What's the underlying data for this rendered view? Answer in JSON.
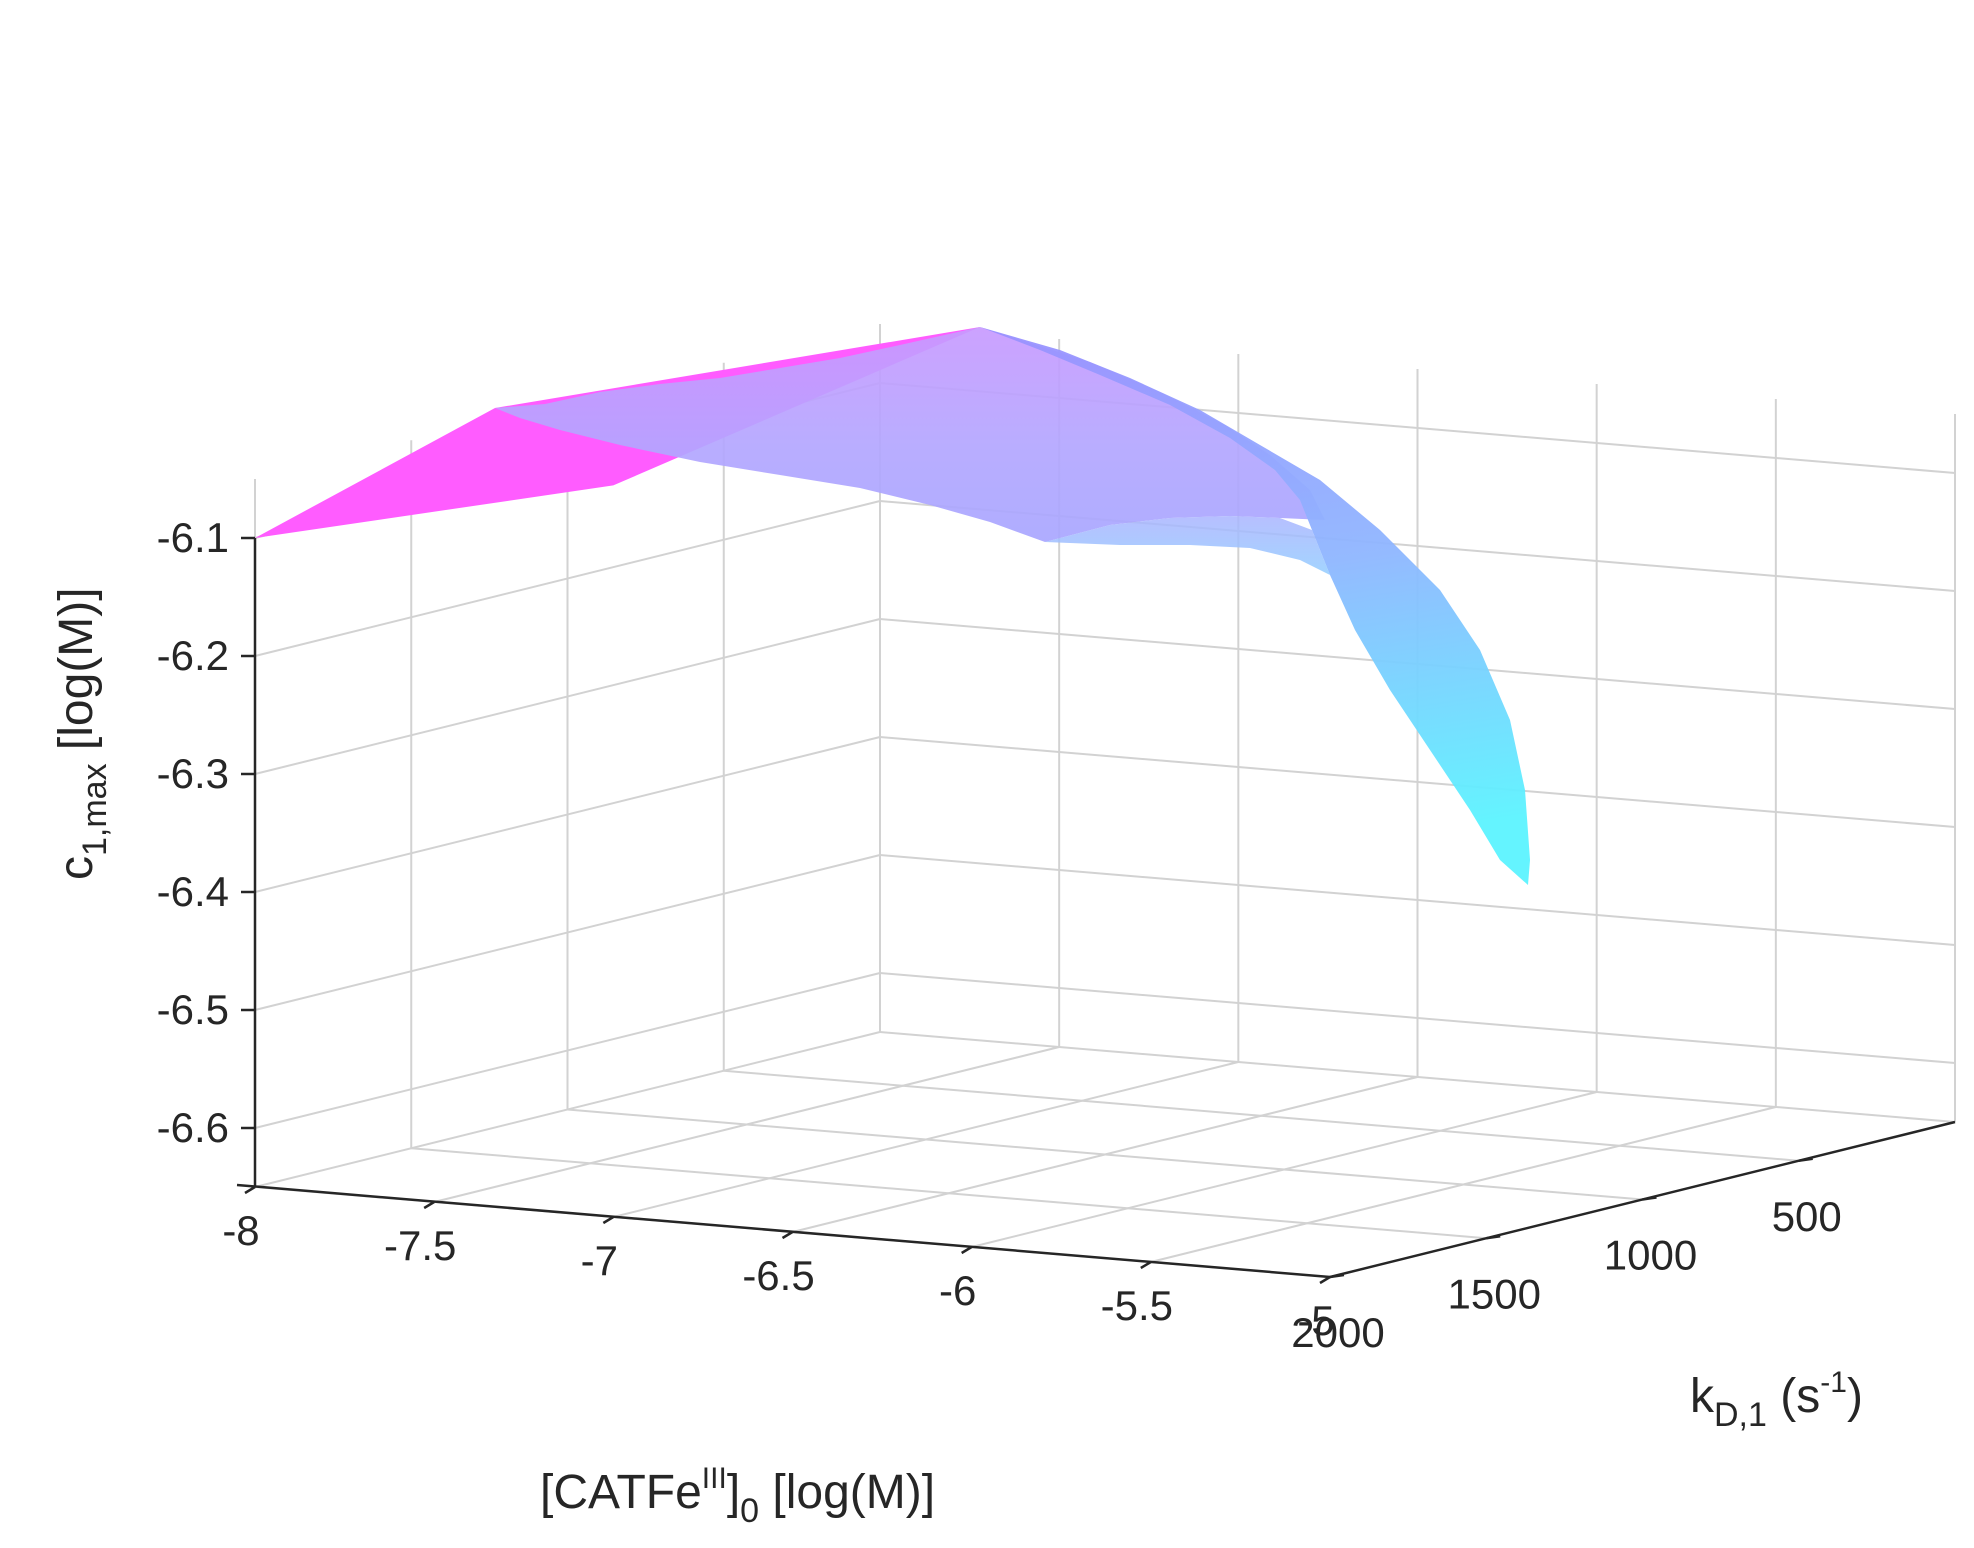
{
  "chart_data": {
    "type": "surface3d",
    "title": "",
    "x_axis": {
      "label_main": "[CATFe",
      "label_sup": "III",
      "label_close": "]",
      "label_sub": "0",
      "label_units": " [log(M)]",
      "range": [
        -8,
        -5
      ],
      "ticks": [
        -8,
        -7.5,
        -7,
        -6.5,
        -6,
        -5.5,
        -5
      ],
      "tick_labels": [
        "-8",
        "-7.5",
        "-7",
        "-6.5",
        "-6",
        "-5.5",
        "-5"
      ]
    },
    "y_axis": {
      "label_main": "k",
      "label_sub": "D,1",
      "label_units": " (s",
      "label_sup": "-1",
      "label_close": ")",
      "range": [
        0,
        2000
      ],
      "ticks": [
        2000,
        1500,
        1000,
        500
      ],
      "tick_labels": [
        "2000",
        "1500",
        "1000",
        "500"
      ]
    },
    "z_axis": {
      "label_main": "c",
      "label_sub": "1,max",
      "label_units": " [log(M)]",
      "range": [
        -6.65,
        -6.05
      ],
      "ticks": [
        -6.1,
        -6.2,
        -6.3,
        -6.4,
        -6.5,
        -6.6
      ],
      "tick_labels": [
        "-6.1",
        "-6.2",
        "-6.3",
        "-6.4",
        "-6.5",
        "-6.6"
      ]
    },
    "surface": {
      "description_points": [
        {
          "x": -8,
          "y": 2000,
          "z": -6.1
        },
        {
          "x": -8,
          "y": 0,
          "z": -6.3
        },
        {
          "x": -7,
          "y": 0,
          "z": -6.23
        },
        {
          "x": -5,
          "y": 0,
          "z": -6.63
        },
        {
          "x": -5,
          "y": 2000,
          "z": -6.32
        }
      ],
      "colormap": [
        "#ff5cff",
        "#c78cff",
        "#9a8cff",
        "#8fb8ff",
        "#5cf0ff"
      ]
    },
    "grid": true
  }
}
